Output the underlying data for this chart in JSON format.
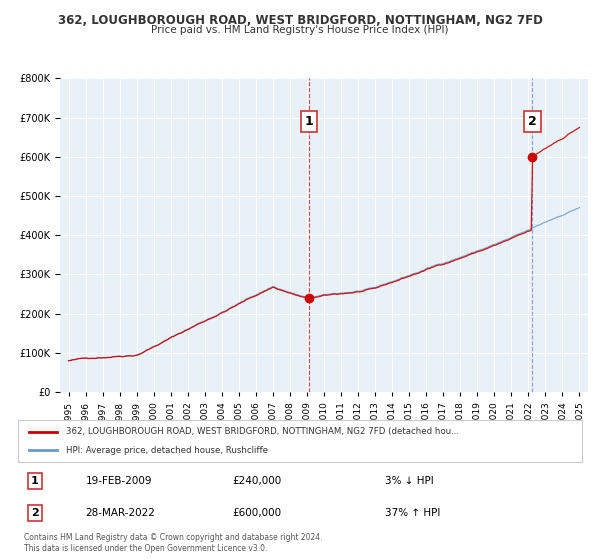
{
  "title": "362, LOUGHBOROUGH ROAD, WEST BRIDGFORD, NOTTINGHAM, NG2 7FD",
  "subtitle": "Price paid vs. HM Land Registry's House Price Index (HPI)",
  "legend_line1": "362, LOUGHBOROUGH ROAD, WEST BRIDGFORD, NOTTINGHAM, NG2 7FD (detached hou...",
  "legend_line2": "HPI: Average price, detached house, Rushcliffe",
  "marker1_date": "19-FEB-2009",
  "marker1_price": 240000,
  "marker1_pct": "3% ↓ HPI",
  "marker2_date": "28-MAR-2022",
  "marker2_price": 600000,
  "marker2_pct": "37% ↑ HPI",
  "footer": "Contains HM Land Registry data © Crown copyright and database right 2024.\nThis data is licensed under the Open Government Licence v3.0.",
  "red_color": "#cc0000",
  "blue_color": "#6699cc",
  "bg_color": "#e8f0f8",
  "grid_color": "#ffffff",
  "ylim": [
    0,
    800000
  ],
  "yticks": [
    0,
    100000,
    200000,
    300000,
    400000,
    500000,
    600000,
    700000,
    800000
  ],
  "xlim_start": 1994.5,
  "xlim_end": 2025.5
}
